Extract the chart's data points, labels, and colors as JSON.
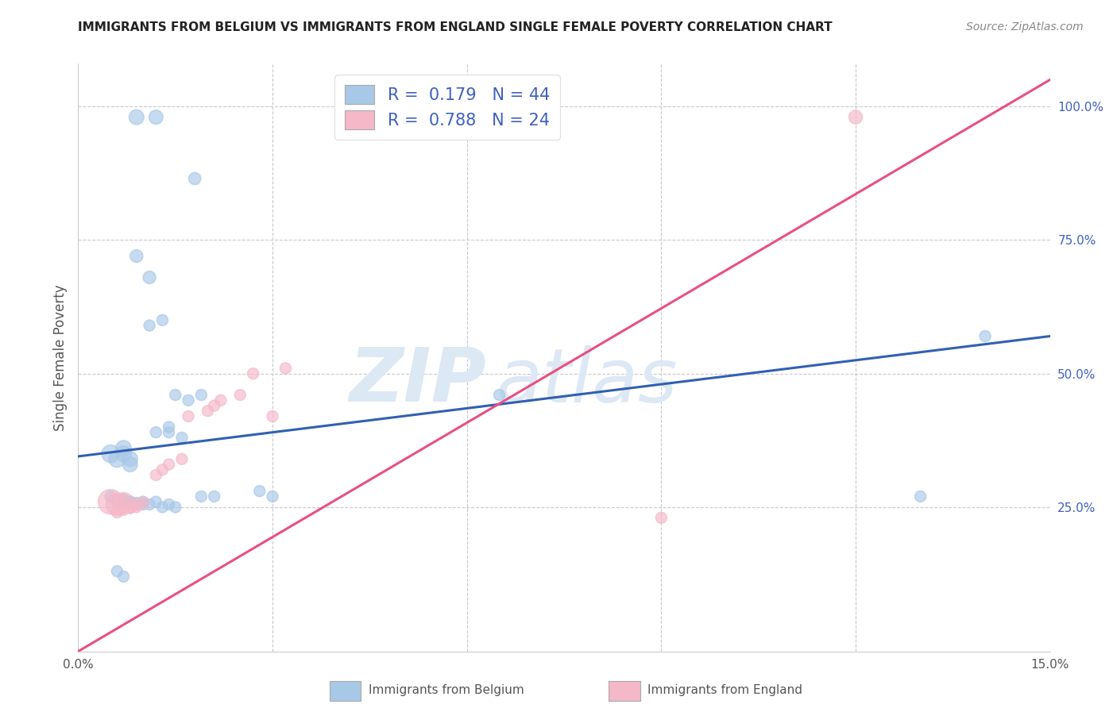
{
  "title": "IMMIGRANTS FROM BELGIUM VS IMMIGRANTS FROM ENGLAND SINGLE FEMALE POVERTY CORRELATION CHART",
  "source": "Source: ZipAtlas.com",
  "ylabel": "Single Female Poverty",
  "legend_label1": "Immigrants from Belgium",
  "legend_label2": "Immigrants from England",
  "R1": 0.179,
  "N1": 44,
  "R2": 0.788,
  "N2": 24,
  "xlim": [
    0.0,
    0.15
  ],
  "ylim": [
    -0.02,
    1.08
  ],
  "color_blue": "#a8c8e8",
  "color_pink": "#f4b8c8",
  "color_blue_line": "#3060b0",
  "color_pink_line": "#e85080",
  "color_grid": "#c8c8d0",
  "color_title": "#222222",
  "color_source": "#888888",
  "color_tick": "#4060c0",
  "blue_x": [
    0.009,
    0.012,
    0.018,
    0.009,
    0.011,
    0.011,
    0.013,
    0.015,
    0.017,
    0.019,
    0.012,
    0.014,
    0.014,
    0.016,
    0.005,
    0.006,
    0.007,
    0.007,
    0.008,
    0.008,
    0.005,
    0.006,
    0.007,
    0.007,
    0.008,
    0.008,
    0.009,
    0.009,
    0.01,
    0.01,
    0.011,
    0.012,
    0.013,
    0.014,
    0.015,
    0.019,
    0.021,
    0.028,
    0.03,
    0.065,
    0.13,
    0.14,
    0.006,
    0.007
  ],
  "blue_y": [
    0.98,
    0.98,
    0.865,
    0.72,
    0.68,
    0.59,
    0.6,
    0.46,
    0.45,
    0.46,
    0.39,
    0.39,
    0.4,
    0.38,
    0.35,
    0.34,
    0.35,
    0.36,
    0.34,
    0.33,
    0.27,
    0.26,
    0.26,
    0.265,
    0.26,
    0.26,
    0.255,
    0.258,
    0.26,
    0.255,
    0.255,
    0.26,
    0.25,
    0.255,
    0.25,
    0.27,
    0.27,
    0.28,
    0.27,
    0.46,
    0.27,
    0.57,
    0.13,
    0.12
  ],
  "blue_sizes": [
    180,
    160,
    120,
    130,
    130,
    100,
    100,
    100,
    100,
    100,
    100,
    100,
    100,
    100,
    250,
    220,
    200,
    200,
    190,
    180,
    100,
    100,
    100,
    100,
    100,
    100,
    100,
    100,
    100,
    100,
    100,
    100,
    100,
    100,
    100,
    100,
    100,
    100,
    100,
    100,
    100,
    100,
    100,
    100
  ],
  "pink_x": [
    0.005,
    0.006,
    0.007,
    0.008,
    0.009,
    0.01,
    0.012,
    0.013,
    0.014,
    0.016,
    0.017,
    0.02,
    0.021,
    0.022,
    0.025,
    0.027,
    0.03,
    0.032,
    0.09,
    0.12,
    0.006,
    0.007,
    0.008,
    0.009
  ],
  "pink_y": [
    0.26,
    0.255,
    0.258,
    0.25,
    0.255,
    0.258,
    0.31,
    0.32,
    0.33,
    0.34,
    0.42,
    0.43,
    0.44,
    0.45,
    0.46,
    0.5,
    0.42,
    0.51,
    0.23,
    0.98,
    0.24,
    0.245,
    0.248,
    0.25
  ],
  "pink_sizes": [
    500,
    400,
    350,
    120,
    120,
    120,
    100,
    100,
    100,
    100,
    100,
    100,
    100,
    100,
    100,
    100,
    100,
    100,
    100,
    150,
    100,
    100,
    100,
    100
  ],
  "watermark_text": "ZIP",
  "watermark_text2": "atlas",
  "watermark_color": "#dce8f4",
  "blue_line_x": [
    0.0,
    0.15
  ],
  "blue_line_y": [
    0.345,
    0.57
  ],
  "pink_line_x": [
    0.0,
    0.15
  ],
  "pink_line_y": [
    -0.02,
    1.05
  ]
}
